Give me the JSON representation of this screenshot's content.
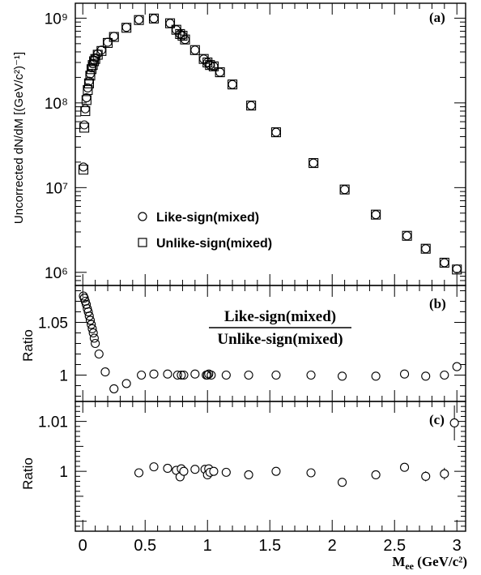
{
  "chart_data": [
    {
      "panel": "(a)",
      "type": "scatter",
      "ylabel": "Uncorrected dN/dM [(GeV/c²)⁻¹]",
      "yscale": "log",
      "ylim": [
        700000,
        1500000000
      ],
      "xlim": [
        -0.06,
        3.07
      ],
      "yticks": [
        "10⁶",
        "10⁷",
        "10⁸",
        "10⁹"
      ],
      "series": [
        {
          "name": "Like-sign(mixed)",
          "marker": "circle",
          "x": [
            0.005,
            0.012,
            0.02,
            0.03,
            0.04,
            0.05,
            0.06,
            0.07,
            0.08,
            0.09,
            0.1,
            0.12,
            0.15,
            0.2,
            0.25,
            0.35,
            0.45,
            0.57,
            0.7,
            0.75,
            0.78,
            0.8,
            0.82,
            0.9,
            0.97,
            1.0,
            1.02,
            1.05,
            1.1,
            1.2,
            1.35,
            1.55,
            1.85,
            2.1,
            2.35,
            2.6,
            2.75,
            2.9,
            3.0
          ],
          "values": [
            17500000,
            55000000,
            85000000,
            115000000,
            150000000,
            180000000,
            220000000,
            260000000,
            290000000,
            320000000,
            340000000,
            380000000,
            420000000,
            520000000,
            610000000,
            780000000,
            960000000,
            990000000,
            870000000,
            730000000,
            650000000,
            620000000,
            560000000,
            420000000,
            330000000,
            300000000,
            280000000,
            270000000,
            230000000,
            165000000,
            93000000,
            45000000,
            19500000,
            9500000,
            4800000,
            2700000,
            1900000,
            1300000,
            1100000
          ]
        },
        {
          "name": "Unlike-sign(mixed)",
          "marker": "square",
          "x": [
            0.005,
            0.012,
            0.02,
            0.03,
            0.04,
            0.05,
            0.06,
            0.07,
            0.08,
            0.09,
            0.1,
            0.12,
            0.15,
            0.2,
            0.25,
            0.35,
            0.45,
            0.57,
            0.7,
            0.75,
            0.78,
            0.8,
            0.82,
            0.9,
            0.97,
            1.0,
            1.02,
            1.05,
            1.1,
            1.2,
            1.35,
            1.55,
            1.85,
            2.1,
            2.35,
            2.6,
            2.75,
            2.9,
            3.0
          ],
          "values": [
            16300000,
            51000000,
            80000000,
            108000000,
            142000000,
            170000000,
            210000000,
            250000000,
            280000000,
            310000000,
            330000000,
            370000000,
            410000000,
            510000000,
            600000000,
            770000000,
            950000000,
            990000000,
            870000000,
            730000000,
            650000000,
            620000000,
            560000000,
            420000000,
            330000000,
            300000000,
            280000000,
            270000000,
            230000000,
            165000000,
            93000000,
            45000000,
            19500000,
            9500000,
            4800000,
            2700000,
            1900000,
            1300000,
            1080000
          ]
        }
      ],
      "legend": {
        "placement": "lower-left",
        "entries": [
          "Like-sign(mixed)",
          "Unlike-sign(mixed)"
        ]
      }
    },
    {
      "panel": "(b)",
      "type": "scatter",
      "ylabel": "Ratio",
      "annotation": {
        "numerator": "Like-sign(mixed)",
        "denominator": "Unlike-sign(mixed)"
      },
      "ylim": [
        0.975,
        1.085
      ],
      "yticks": [
        "1",
        "1.05"
      ],
      "x": [
        0.005,
        0.012,
        0.02,
        0.028,
        0.036,
        0.044,
        0.052,
        0.06,
        0.068,
        0.076,
        0.084,
        0.092,
        0.1,
        0.13,
        0.18,
        0.25,
        0.35,
        0.47,
        0.57,
        0.68,
        0.76,
        0.79,
        0.81,
        0.9,
        0.99,
        1.0,
        1.01,
        1.03,
        1.15,
        1.33,
        1.55,
        1.83,
        2.08,
        2.35,
        2.58,
        2.75,
        2.9,
        3.0
      ],
      "values": [
        1.075,
        1.073,
        1.07,
        1.067,
        1.063,
        1.06,
        1.056,
        1.052,
        1.048,
        1.044,
        1.04,
        1.035,
        1.03,
        1.02,
        1.003,
        0.987,
        0.992,
        1.0,
        1.001,
        1.001,
        1.0,
        1.0,
        1.0,
        1.001,
        1.0,
        1.0,
        1.001,
        1.0,
        1.0,
        1.0,
        1.0,
        1.0,
        0.999,
        0.999,
        1.001,
        0.999,
        1.0,
        1.008
      ]
    },
    {
      "panel": "(c)",
      "type": "scatter",
      "ylabel": "Ratio",
      "ylim": [
        0.988,
        1.014
      ],
      "yticks": [
        "1",
        "1.01"
      ],
      "xlabel": "M_ee (GeV/c²)",
      "xticks": [
        "0",
        "0.5",
        "1",
        "1.5",
        "2",
        "2.5",
        "3"
      ],
      "x": [
        0.45,
        0.57,
        0.68,
        0.75,
        0.78,
        0.79,
        0.81,
        0.9,
        0.98,
        1.0,
        1.01,
        1.02,
        1.05,
        1.15,
        1.33,
        1.55,
        1.83,
        2.08,
        2.35,
        2.58,
        2.75,
        2.9,
        2.98
      ],
      "values": [
        0.9997,
        1.0009,
        1.0006,
        1.0002,
        0.9989,
        1.0005,
        1.0,
        1.0004,
        1.0004,
        0.9993,
        1.0005,
        0.9998,
        1.0,
        0.9998,
        0.9993,
        1.0,
        0.9997,
        0.9978,
        0.9993,
        1.0008,
        0.999,
        0.9995,
        1.0097
      ],
      "errors": [
        0,
        0,
        0,
        0,
        0,
        0,
        0,
        0,
        0,
        0,
        0,
        0,
        0,
        0,
        0,
        0,
        0,
        0,
        0,
        0.0008,
        0.001,
        0.0012,
        0.0035
      ]
    }
  ],
  "labels": {
    "panel_a": "(a)",
    "panel_b": "(b)",
    "panel_c": "(c)",
    "ylabel_a": "Uncorrected dN/dM [(GeV/c²)⁻¹]",
    "ylabel_b": "Ratio",
    "ylabel_c": "Ratio",
    "legend_like": "Like-sign(mixed)",
    "legend_unlike": "Unlike-sign(mixed)",
    "ratio_num": "Like-sign(mixed)",
    "ratio_den": "Unlike-sign(mixed)",
    "xlabel_main": "M",
    "xlabel_sub": "ee",
    "xlabel_rest": " (GeV/c²)"
  }
}
